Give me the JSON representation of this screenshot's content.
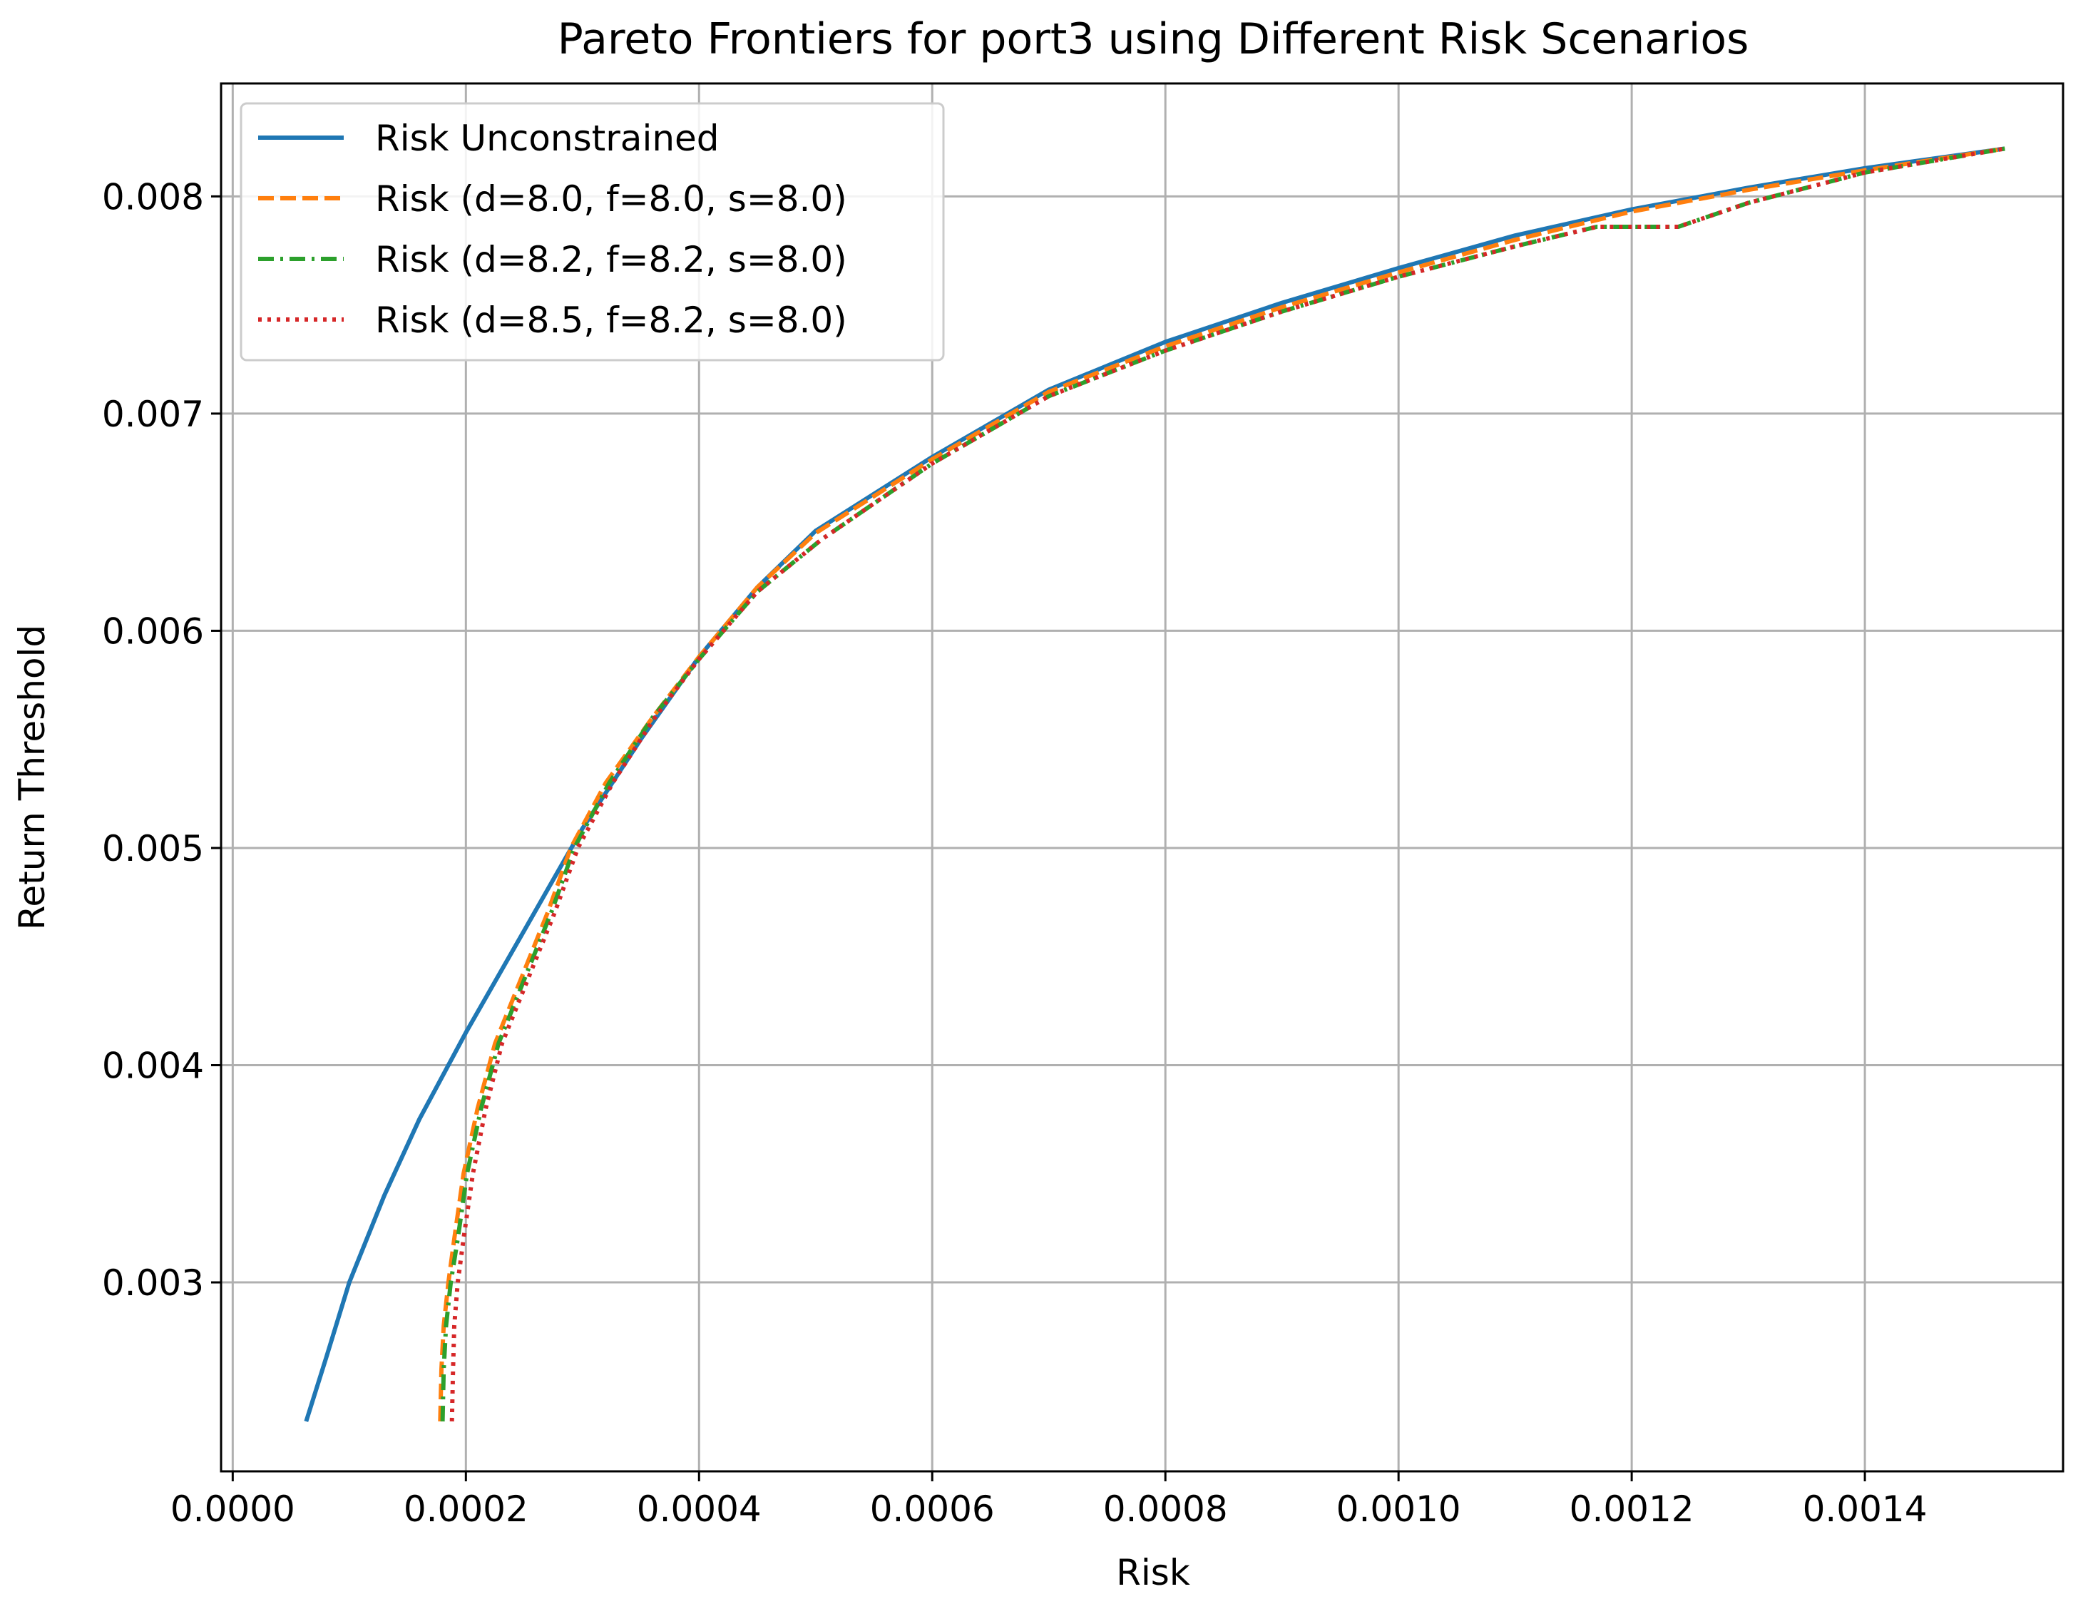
{
  "chart_data": {
    "type": "line",
    "title": "Pareto Frontiers for port3 using Different Risk Scenarios",
    "xlabel": "Risk",
    "ylabel": "Return Threshold",
    "xlim": [
      -1e-05,
      0.00157
    ],
    "ylim": [
      0.00213,
      0.00852
    ],
    "x_ticks": [
      0.0,
      0.0002,
      0.0004,
      0.0006,
      0.0008,
      0.001,
      0.0012,
      0.0014
    ],
    "x_tick_labels": [
      "0.0000",
      "0.0002",
      "0.0004",
      "0.0006",
      "0.0008",
      "0.0010",
      "0.0012",
      "0.0014"
    ],
    "y_ticks": [
      0.003,
      0.004,
      0.005,
      0.006,
      0.007,
      0.008
    ],
    "y_tick_labels": [
      "0.003",
      "0.004",
      "0.005",
      "0.006",
      "0.007",
      "0.008"
    ],
    "grid": true,
    "legend_position": "upper-left",
    "series": [
      {
        "name": "Risk Unconstrained",
        "color": "#1f77b4",
        "style": "solid",
        "x": [
          6.3e-05,
          8e-05,
          0.0001,
          0.00013,
          0.00016,
          0.0002,
          0.00025,
          0.0003,
          0.00035,
          0.0004,
          0.00045,
          0.0005,
          0.0006,
          0.0007,
          0.0008,
          0.0009,
          0.001,
          0.0011,
          0.0012,
          0.0013,
          0.0014,
          0.00152
        ],
        "y": [
          0.00236,
          0.00265,
          0.003,
          0.0034,
          0.00375,
          0.00415,
          0.00462,
          0.00509,
          0.0055,
          0.00588,
          0.0062,
          0.00646,
          0.0068,
          0.00711,
          0.00733,
          0.00751,
          0.00767,
          0.00782,
          0.00794,
          0.00804,
          0.00813,
          0.00822
        ]
      },
      {
        "name": "Risk (d=8.0, f=8.0, s=8.0)",
        "color": "#ff7f0e",
        "style": "dashed",
        "x": [
          0.000178,
          0.000179,
          0.000181,
          0.000185,
          0.00019,
          0.000198,
          0.00021,
          0.000225,
          0.00024,
          0.000255,
          0.00027,
          0.00029,
          0.00032,
          0.00036,
          0.0004,
          0.00045,
          0.0005,
          0.0006,
          0.0007,
          0.0008,
          0.0009,
          0.001,
          0.0011,
          0.0012,
          0.0013,
          0.0014,
          0.00152
        ],
        "y": [
          0.00236,
          0.0026,
          0.0028,
          0.003,
          0.0032,
          0.0035,
          0.0038,
          0.0041,
          0.0043,
          0.0045,
          0.0047,
          0.005,
          0.0053,
          0.0056,
          0.00588,
          0.0062,
          0.00645,
          0.00679,
          0.0071,
          0.00731,
          0.00749,
          0.00765,
          0.0078,
          0.00793,
          0.00803,
          0.00812,
          0.00822
        ]
      },
      {
        "name": "Risk (d=8.2, f=8.2, s=8.0)",
        "color": "#2ca02c",
        "style": "dashdot",
        "x": [
          0.00018,
          0.000181,
          0.000183,
          0.000187,
          0.000193,
          0.000201,
          0.000213,
          0.000228,
          0.000243,
          0.000258,
          0.000273,
          0.000293,
          0.000323,
          0.00036,
          0.0004,
          0.00045,
          0.000505,
          0.0006,
          0.0007,
          0.0008,
          0.0009,
          0.001,
          0.0011,
          0.00117,
          0.00124,
          0.0013,
          0.0014,
          0.00152
        ],
        "y": [
          0.00236,
          0.0026,
          0.0028,
          0.003,
          0.0032,
          0.0035,
          0.0038,
          0.0041,
          0.0043,
          0.0045,
          0.0047,
          0.005,
          0.0053,
          0.0056,
          0.00587,
          0.00618,
          0.00642,
          0.00677,
          0.00708,
          0.00729,
          0.00747,
          0.00763,
          0.00777,
          0.00786,
          0.00786,
          0.00797,
          0.00811,
          0.00822
        ]
      },
      {
        "name": "Risk (d=8.5, f=8.2, s=8.0)",
        "color": "#d62728",
        "style": "dotted",
        "x": [
          0.000188,
          0.000189,
          0.00019,
          0.000193,
          0.000198,
          0.000206,
          0.000217,
          0.000231,
          0.000246,
          0.000261,
          0.000276,
          0.000296,
          0.000326,
          0.000362,
          0.0004,
          0.00045,
          0.000505,
          0.0006,
          0.0007,
          0.0008,
          0.0009,
          0.001,
          0.0011,
          0.00117,
          0.00124,
          0.0013,
          0.0014,
          0.00152
        ],
        "y": [
          0.00236,
          0.0026,
          0.0028,
          0.003,
          0.0032,
          0.0035,
          0.0038,
          0.0041,
          0.0043,
          0.0045,
          0.0047,
          0.005,
          0.0053,
          0.0056,
          0.00587,
          0.00618,
          0.00642,
          0.00677,
          0.00708,
          0.00729,
          0.00747,
          0.00763,
          0.00777,
          0.00786,
          0.00786,
          0.00797,
          0.00811,
          0.00822
        ]
      }
    ]
  }
}
